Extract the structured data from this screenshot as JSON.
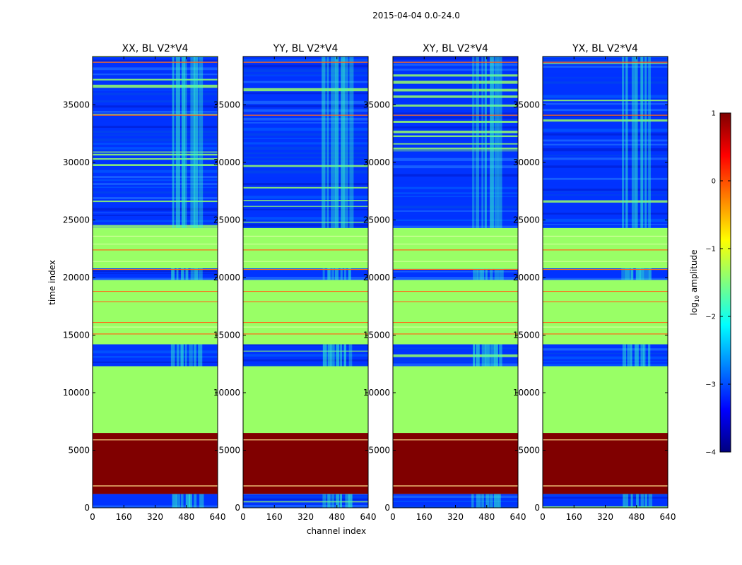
{
  "figure": {
    "suptitle": "2015-04-04 0.0-24.0"
  },
  "chart_data": {
    "type": "heatmap",
    "xlabel": "channel index",
    "ylabel": "time index",
    "xlim": [
      0,
      640
    ],
    "ylim": [
      0,
      39200
    ],
    "x_ticks": [
      0,
      160,
      320,
      480,
      640
    ],
    "y_ticks": [
      0,
      5000,
      10000,
      15000,
      20000,
      25000,
      30000,
      35000
    ],
    "panels": [
      {
        "title": "XX, BL V2*V4"
      },
      {
        "title": "YY, BL V2*V4"
      },
      {
        "title": "XY, BL V2*V4"
      },
      {
        "title": "YX, BL V2*V4"
      }
    ],
    "colorbar": {
      "label": "log10 amplitude",
      "label_base": "log",
      "label_sub": "10",
      "label_rest": " amplitude",
      "range": [
        -4,
        1
      ],
      "ticks": [
        1,
        0,
        -1,
        -2,
        -3,
        -4
      ],
      "tick_labels": [
        "1",
        "0",
        "−1",
        "−2",
        "−3",
        "−4"
      ],
      "colormap": "jet"
    },
    "time_bands": [
      {
        "start": 0,
        "end": 1200,
        "level": "noise",
        "value": -3.2
      },
      {
        "start": 1200,
        "end": 6500,
        "level": "saturated",
        "value": 1.0
      },
      {
        "start": 6500,
        "end": 12300,
        "level": "flat",
        "value": -1.2
      },
      {
        "start": 12300,
        "end": 14200,
        "level": "noise",
        "value": -3.2
      },
      {
        "start": 14200,
        "end": 19800,
        "level": "flat",
        "value": -1.2
      },
      {
        "start": 19800,
        "end": 20800,
        "level": "noise",
        "value": -3.2
      },
      {
        "start": 20800,
        "end": 24300,
        "level": "flat",
        "value": -1.2
      },
      {
        "start": 24300,
        "end": 39200,
        "level": "noise",
        "value": -3.2
      }
    ],
    "flag_lines": [
      1900,
      5900,
      15100,
      16100,
      17900,
      18800,
      20700,
      22400,
      34100,
      38700
    ],
    "rfi_channel_range": [
      400,
      560
    ],
    "colors": {
      "saturated": "#800000",
      "flat": "#99ff66",
      "noise": "#0033ff",
      "flag": "#ff6a1a",
      "light_line": "#e8ffb0"
    }
  }
}
